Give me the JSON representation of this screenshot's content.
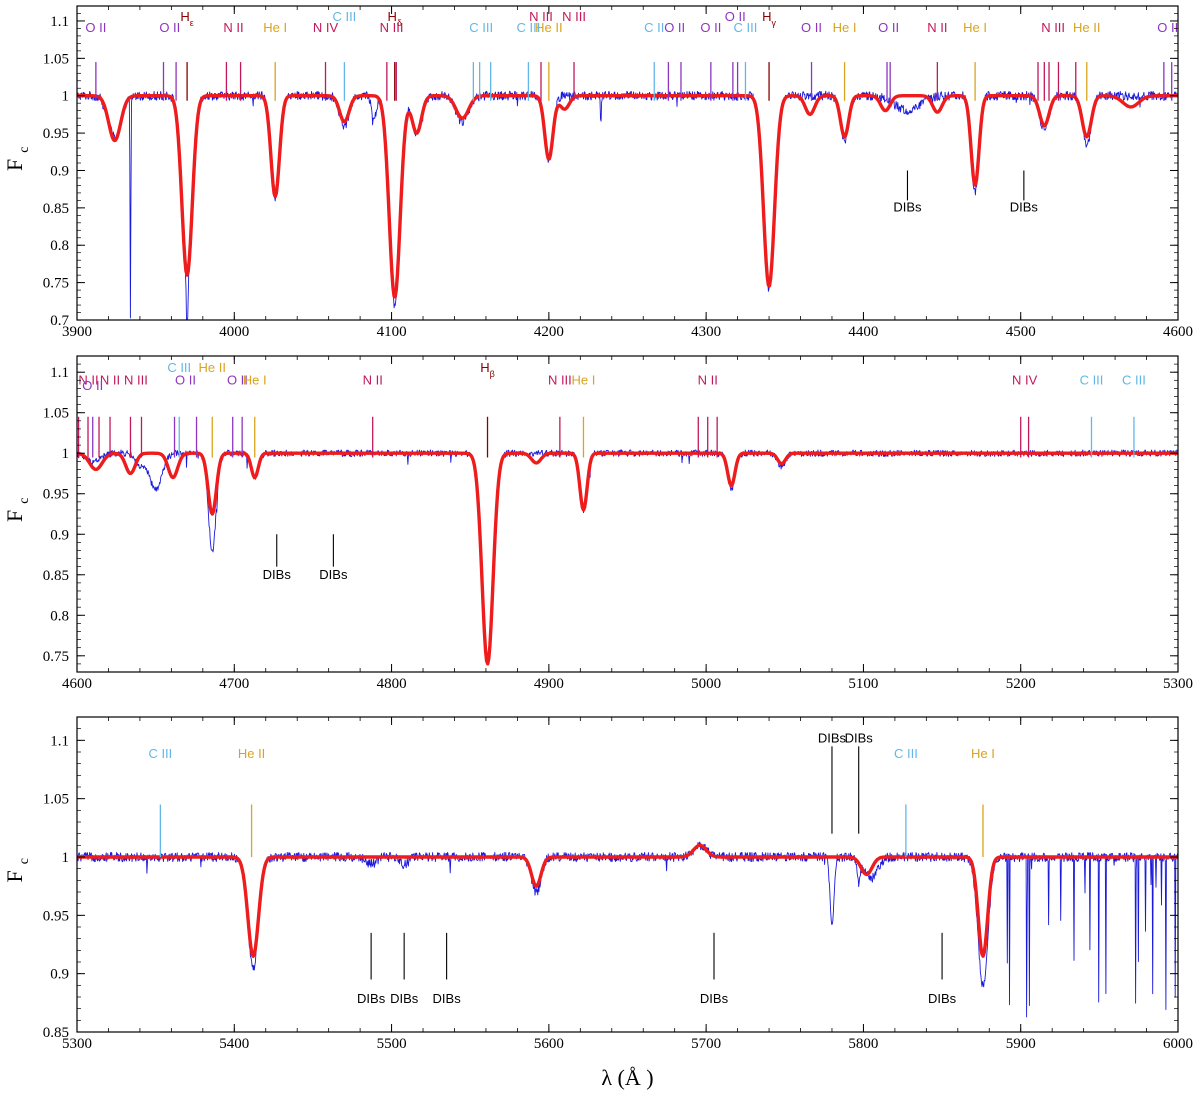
{
  "colors": {
    "observed": "#1a1adc",
    "model": "#ee1c1c",
    "H": "#8b0000",
    "He I": "#d9a41e",
    "He II": "#d9a41e",
    "N II": "#c2185b",
    "N III": "#c2185b",
    "N IV": "#c2185b",
    "O II": "#8e35c0",
    "C II": "#62b7e8",
    "C III": "#62b7e8",
    "DIB": "#000000"
  },
  "chart_data": [
    {
      "type": "line",
      "panel": 1,
      "xlim": [
        3900,
        4600
      ],
      "ylim": [
        0.7,
        1.12
      ],
      "xticks": [
        3900,
        4000,
        4100,
        4200,
        4300,
        4400,
        4500,
        4600
      ],
      "yticks": [
        0.7,
        0.75,
        0.8,
        0.85,
        0.9,
        0.95,
        1,
        1.05,
        1.1
      ],
      "ylabel": "F",
      "ylabel_sub": "c",
      "continuum": 1.0,
      "series": [
        {
          "key": "observed",
          "noise": 0.006,
          "lines": [
            {
              "x": 3924,
              "depth": 0.055,
              "sigma": 4
            },
            {
              "x": 3934,
              "depth": 0.3,
              "sigma": 0.25
            },
            {
              "x": 3970,
              "depth": 0.24,
              "sigma": 3.2
            },
            {
              "x": 3970,
              "depth": 0.08,
              "sigma": 0.5
            },
            {
              "x": 4026,
              "depth": 0.14,
              "sigma": 2.6
            },
            {
              "x": 4070,
              "depth": 0.04,
              "sigma": 3
            },
            {
              "x": 4089,
              "depth": 0.03,
              "sigma": 1.5
            },
            {
              "x": 4102,
              "depth": 0.28,
              "sigma": 3.4
            },
            {
              "x": 4116,
              "depth": 0.05,
              "sigma": 3
            },
            {
              "x": 4145,
              "depth": 0.035,
              "sigma": 4
            },
            {
              "x": 4200,
              "depth": 0.085,
              "sigma": 2.6
            },
            {
              "x": 4233,
              "depth": 0.04,
              "sigma": 0.3
            },
            {
              "x": 4340,
              "depth": 0.26,
              "sigma": 3.4
            },
            {
              "x": 4388,
              "depth": 0.06,
              "sigma": 2.6
            },
            {
              "x": 4428,
              "depth": 0.02,
              "sigma": 8
            },
            {
              "x": 4471,
              "depth": 0.13,
              "sigma": 2.4
            },
            {
              "x": 4515,
              "depth": 0.045,
              "sigma": 3
            },
            {
              "x": 4542,
              "depth": 0.065,
              "sigma": 2.8
            }
          ]
        },
        {
          "key": "model",
          "noise": 0,
          "lines": [
            {
              "x": 3924,
              "depth": 0.06,
              "sigma": 3.8
            },
            {
              "x": 3970,
              "depth": 0.24,
              "sigma": 3.3
            },
            {
              "x": 4026,
              "depth": 0.135,
              "sigma": 2.7
            },
            {
              "x": 4070,
              "depth": 0.035,
              "sigma": 3
            },
            {
              "x": 4102,
              "depth": 0.27,
              "sigma": 3.5
            },
            {
              "x": 4116,
              "depth": 0.05,
              "sigma": 3
            },
            {
              "x": 4145,
              "depth": 0.03,
              "sigma": 4
            },
            {
              "x": 4200,
              "depth": 0.085,
              "sigma": 2.6
            },
            {
              "x": 4210,
              "depth": 0.018,
              "sigma": 3
            },
            {
              "x": 4340,
              "depth": 0.255,
              "sigma": 3.5
            },
            {
              "x": 4366,
              "depth": 0.025,
              "sigma": 3
            },
            {
              "x": 4388,
              "depth": 0.055,
              "sigma": 2.6
            },
            {
              "x": 4414,
              "depth": 0.02,
              "sigma": 3
            },
            {
              "x": 4447,
              "depth": 0.022,
              "sigma": 3
            },
            {
              "x": 4471,
              "depth": 0.12,
              "sigma": 2.5
            },
            {
              "x": 4515,
              "depth": 0.04,
              "sigma": 3
            },
            {
              "x": 4542,
              "depth": 0.055,
              "sigma": 2.9
            },
            {
              "x": 4570,
              "depth": 0.015,
              "sigma": 5
            }
          ]
        }
      ],
      "ion_markers": [
        {
          "label": "O II",
          "species": "O II",
          "x": [
            3912
          ]
        },
        {
          "label": "O II",
          "species": "O II",
          "x": [
            3955,
            3963
          ]
        },
        {
          "label": "H",
          "sub": "ε",
          "species": "H",
          "x": [
            3970
          ],
          "high": true
        },
        {
          "label": "N II",
          "species": "N II",
          "x": [
            3995,
            4004
          ]
        },
        {
          "label": "He I",
          "species": "He I",
          "x": [
            4026
          ]
        },
        {
          "label": "N IV",
          "species": "N IV",
          "x": [
            4058
          ]
        },
        {
          "label": "C III",
          "species": "C III",
          "x": [
            4070
          ],
          "high": true
        },
        {
          "label": "N III",
          "species": "N III",
          "x": [
            4097,
            4103
          ]
        },
        {
          "label": "H",
          "sub": "δ",
          "species": "H",
          "x": [
            4102
          ],
          "high": true
        },
        {
          "label": "C III",
          "species": "C III",
          "x": [
            4152,
            4156,
            4163
          ]
        },
        {
          "label": "C III",
          "species": "C III",
          "x": [
            4187
          ]
        },
        {
          "label": "N III",
          "species": "N III",
          "x": [
            4195
          ],
          "high": true
        },
        {
          "label": "He II",
          "species": "He II",
          "x": [
            4200
          ]
        },
        {
          "label": "N III",
          "species": "N III",
          "x": [
            4216
          ],
          "high": true
        },
        {
          "label": "C II",
          "species": "C II",
          "x": [
            4267
          ]
        },
        {
          "label": "O II",
          "species": "O II",
          "x": [
            4276,
            4284
          ]
        },
        {
          "label": "O II",
          "species": "O II",
          "x": [
            4303
          ]
        },
        {
          "label": "O II",
          "species": "O II",
          "x": [
            4317,
            4320
          ],
          "high": true
        },
        {
          "label": "C III",
          "species": "C III",
          "x": [
            4325
          ]
        },
        {
          "label": "H",
          "sub": "γ",
          "species": "H",
          "x": [
            4340
          ],
          "high": true
        },
        {
          "label": "O II",
          "species": "O II",
          "x": [
            4367
          ]
        },
        {
          "label": "He I",
          "species": "He I",
          "x": [
            4388
          ]
        },
        {
          "label": "O II",
          "species": "O II",
          "x": [
            4415,
            4417
          ]
        },
        {
          "label": "N II",
          "species": "N II",
          "x": [
            4447
          ]
        },
        {
          "label": "He I",
          "species": "He I",
          "x": [
            4471
          ]
        },
        {
          "label": "N III",
          "species": "N III",
          "x": [
            4511,
            4515,
            4518,
            4524,
            4535
          ]
        },
        {
          "label": "He II",
          "species": "He II",
          "x": [
            4542
          ]
        },
        {
          "label": "O II",
          "species": "O II",
          "x": [
            4591,
            4596
          ]
        }
      ],
      "dibs": [
        {
          "x": 4428,
          "label": "DIBs"
        },
        {
          "x": 4502,
          "label": "DIBs"
        }
      ]
    },
    {
      "type": "line",
      "panel": 2,
      "xlim": [
        4600,
        5300
      ],
      "ylim": [
        0.73,
        1.12
      ],
      "xticks": [
        4600,
        4700,
        4800,
        4900,
        5000,
        5100,
        5200,
        5300
      ],
      "yticks": [
        0.75,
        0.8,
        0.85,
        0.9,
        0.95,
        1,
        1.05,
        1.1
      ],
      "ylabel": "F",
      "ylabel_sub": "c",
      "continuum": 1.0,
      "series": [
        {
          "key": "observed",
          "noise": 0.004,
          "lines": [
            {
              "x": 4610,
              "depth": 0.01,
              "sigma": 5
            },
            {
              "x": 4640,
              "depth": 0.015,
              "sigma": 3
            },
            {
              "x": 4650,
              "depth": 0.045,
              "sigma": 4
            },
            {
              "x": 4686,
              "depth": 0.12,
              "sigma": 2.5
            },
            {
              "x": 4713,
              "depth": 0.03,
              "sigma": 2.2
            },
            {
              "x": 4861,
              "depth": 0.26,
              "sigma": 3.5
            },
            {
              "x": 4922,
              "depth": 0.07,
              "sigma": 2.3
            },
            {
              "x": 5016,
              "depth": 0.045,
              "sigma": 2.3
            },
            {
              "x": 5048,
              "depth": 0.016,
              "sigma": 2.5
            }
          ]
        },
        {
          "key": "model",
          "noise": 0,
          "lines": [
            {
              "x": 4612,
              "depth": 0.02,
              "sigma": 4
            },
            {
              "x": 4634,
              "depth": 0.025,
              "sigma": 3
            },
            {
              "x": 4661,
              "depth": 0.03,
              "sigma": 3
            },
            {
              "x": 4686,
              "depth": 0.075,
              "sigma": 2.6
            },
            {
              "x": 4713,
              "depth": 0.03,
              "sigma": 2.2
            },
            {
              "x": 4861,
              "depth": 0.26,
              "sigma": 3.5
            },
            {
              "x": 4892,
              "depth": 0.012,
              "sigma": 3
            },
            {
              "x": 4922,
              "depth": 0.07,
              "sigma": 2.3
            },
            {
              "x": 5016,
              "depth": 0.04,
              "sigma": 2.3
            },
            {
              "x": 5048,
              "depth": 0.013,
              "sigma": 2.5
            }
          ]
        }
      ],
      "ion_markers": [
        {
          "label": "N II",
          "species": "N II",
          "x": [
            4601,
            4607,
            4614
          ]
        },
        {
          "label": "N II",
          "species": "N II",
          "x": [
            4621
          ]
        },
        {
          "label": "O II",
          "species": "O II",
          "x": [
            4610
          ],
          "low": true
        },
        {
          "label": "N III",
          "species": "N III",
          "x": [
            4634,
            4641
          ]
        },
        {
          "label": "O II",
          "species": "O II",
          "x": [
            4662,
            4676
          ]
        },
        {
          "label": "C III",
          "species": "C III",
          "x": [
            4665
          ],
          "high": true
        },
        {
          "label": "He II",
          "species": "He II",
          "x": [
            4686
          ],
          "high": true
        },
        {
          "label": "O II",
          "species": "O II",
          "x": [
            4699,
            4705
          ]
        },
        {
          "label": "He I",
          "species": "He I",
          "x": [
            4713
          ]
        },
        {
          "label": "N II",
          "species": "N II",
          "x": [
            4788
          ]
        },
        {
          "label": "H",
          "sub": "β",
          "species": "H",
          "x": [
            4861
          ],
          "high": true
        },
        {
          "label": "N III",
          "species": "N III",
          "x": [
            4907
          ]
        },
        {
          "label": "He I",
          "species": "He I",
          "x": [
            4922
          ]
        },
        {
          "label": "N II",
          "species": "N II",
          "x": [
            4995,
            5001,
            5007
          ]
        },
        {
          "label": "N IV",
          "species": "N IV",
          "x": [
            5200,
            5205
          ]
        },
        {
          "label": "C III",
          "species": "C III",
          "x": [
            5245
          ]
        },
        {
          "label": "C III",
          "species": "C III",
          "x": [
            5272
          ]
        }
      ],
      "dibs": [
        {
          "x": 4727,
          "label": "DIBs"
        },
        {
          "x": 4763,
          "label": "DIBs"
        }
      ]
    },
    {
      "type": "line",
      "panel": 3,
      "xlim": [
        5300,
        6000
      ],
      "ylim": [
        0.85,
        1.12
      ],
      "xticks": [
        5300,
        5400,
        5500,
        5600,
        5700,
        5800,
        5900,
        6000
      ],
      "yticks": [
        0.85,
        0.9,
        0.95,
        1,
        1.05,
        1.1
      ],
      "ylabel": "F",
      "ylabel_sub": "c",
      "xlabel": "λ (Å )",
      "continuum": 1.0,
      "series": [
        {
          "key": "observed",
          "noise": 0.004,
          "lines": [
            {
              "x": 5412,
              "depth": 0.095,
              "sigma": 3.5
            },
            {
              "x": 5487,
              "depth": 0.006,
              "sigma": 3
            },
            {
              "x": 5508,
              "depth": 0.006,
              "sigma": 3
            },
            {
              "x": 5592,
              "depth": 0.03,
              "sigma": 3
            },
            {
              "x": 5696,
              "depth": -0.01,
              "sigma": 4
            },
            {
              "x": 5780,
              "depth": 0.06,
              "sigma": 1.2
            },
            {
              "x": 5797,
              "depth": 0.02,
              "sigma": 1
            },
            {
              "x": 5805,
              "depth": 0.018,
              "sigma": 4
            },
            {
              "x": 5876,
              "depth": 0.11,
              "sigma": 3.2
            }
          ]
        },
        {
          "key": "model",
          "noise": 0,
          "lines": [
            {
              "x": 5412,
              "depth": 0.085,
              "sigma": 3.4
            },
            {
              "x": 5592,
              "depth": 0.025,
              "sigma": 3
            },
            {
              "x": 5696,
              "depth": -0.01,
              "sigma": 4
            },
            {
              "x": 5802,
              "depth": 0.015,
              "sigma": 3.5
            },
            {
              "x": 5876,
              "depth": 0.085,
              "sigma": 3
            }
          ]
        }
      ],
      "telluric_start": 5888,
      "ion_markers": [
        {
          "label": "C III",
          "species": "C III",
          "x": [
            5353
          ]
        },
        {
          "label": "He II",
          "species": "He II",
          "x": [
            5411
          ]
        },
        {
          "label": "C III",
          "species": "C III",
          "x": [
            5827
          ]
        },
        {
          "label": "He I",
          "species": "He I",
          "x": [
            5876
          ]
        }
      ],
      "dibs": [
        {
          "x": 5487,
          "label": "DIBs"
        },
        {
          "x": 5508,
          "label": "DIBs"
        },
        {
          "x": 5535,
          "label": "DIBs"
        },
        {
          "x": 5705,
          "label": "DIBs"
        },
        {
          "x": 5850,
          "label": "DIBs"
        },
        {
          "x": 5780,
          "label": "DIBs",
          "above": true
        },
        {
          "x": 5797,
          "label": "DIBs",
          "above": true
        }
      ]
    }
  ]
}
